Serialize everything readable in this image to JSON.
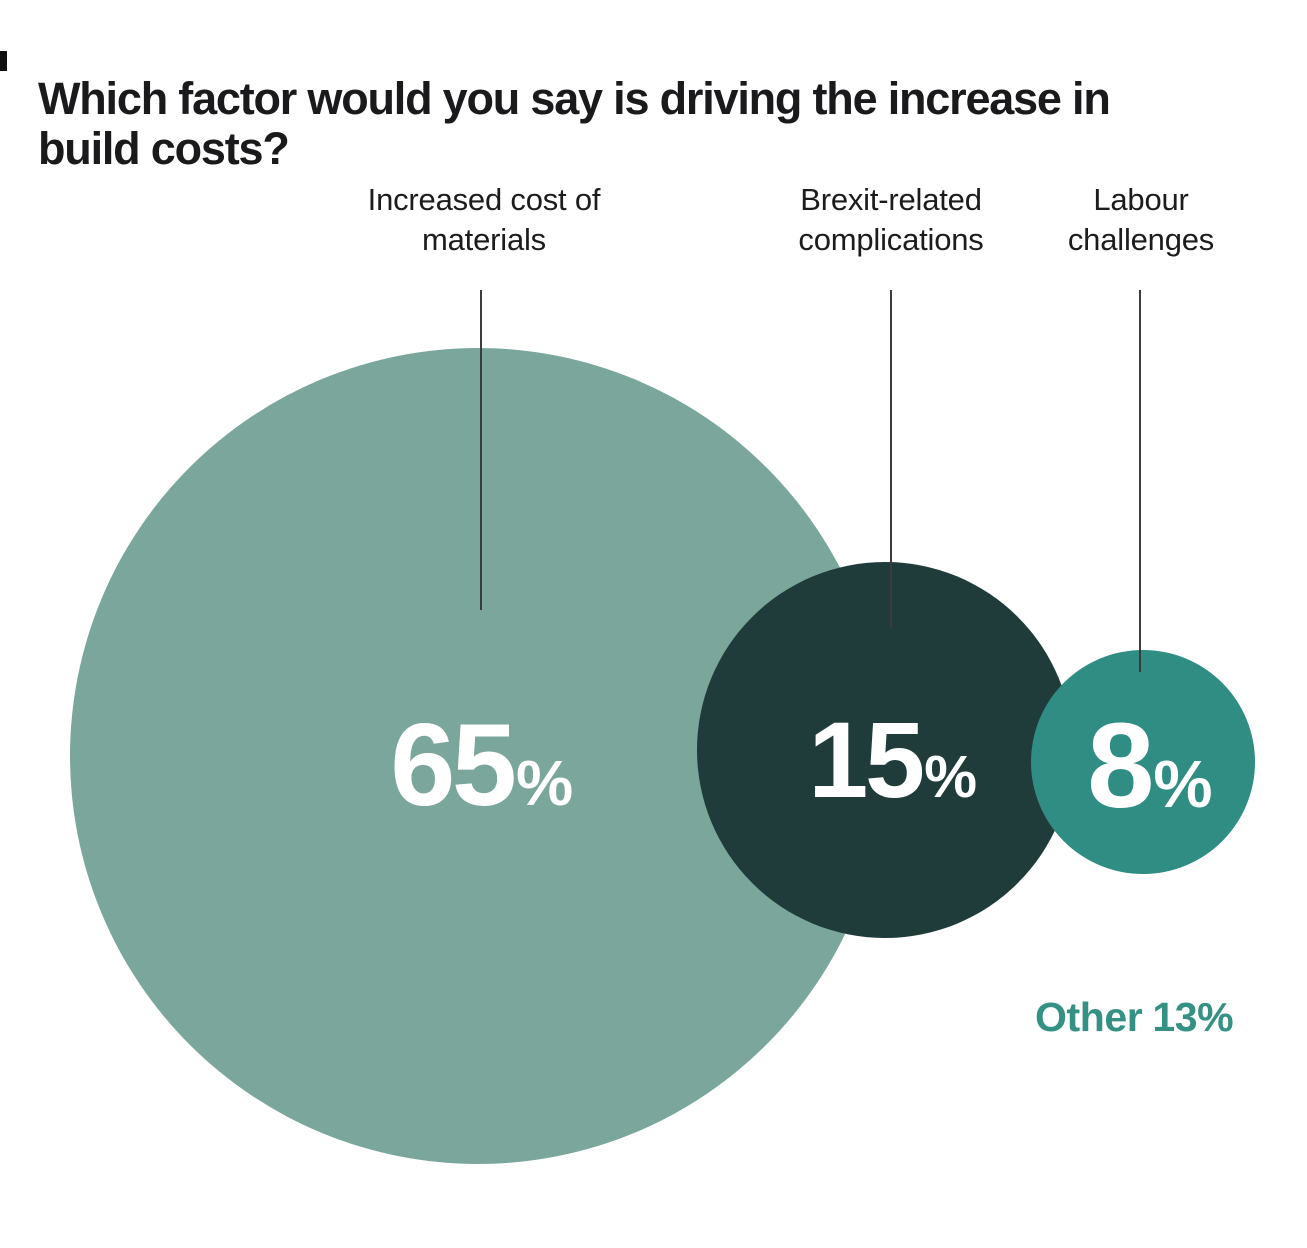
{
  "title": "Which factor would you say is driving the increase in build costs?",
  "corner_mark_color": "#101010",
  "bubbles": [
    {
      "name": "increased-cost-of-materials",
      "label_line1": "Increased cost of",
      "label_line2": "materials",
      "value": "65",
      "percent_sign": "%",
      "fill": "#7AA69B",
      "text_color": "#FFFFFF"
    },
    {
      "name": "brexit-related-complications",
      "label_line1": "Brexit-related",
      "label_line2": "complications",
      "value": "15",
      "percent_sign": "%",
      "fill": "#1F3C3A",
      "text_color": "#FFFFFF"
    },
    {
      "name": "labour-challenges",
      "label_line1": "Labour",
      "label_line2": "challenges",
      "value": "8",
      "percent_sign": "%",
      "fill": "#2F8D83",
      "text_color": "#FFFFFF"
    }
  ],
  "other": {
    "label": "Other",
    "value": "13%",
    "color": "#349183"
  },
  "chart_data": {
    "type": "bubble",
    "title": "Which factor would you say is driving the increase in build costs?",
    "unit": "%",
    "categories": [
      "Increased cost of materials",
      "Brexit-related complications",
      "Labour challenges",
      "Other"
    ],
    "values": [
      65,
      15,
      8,
      13
    ],
    "colors": [
      "#7AA69B",
      "#1F3C3A",
      "#2F8D83",
      "#349183"
    ],
    "legend_position": "labels-above-with-leader-lines",
    "notes": "Three circles sized by value; 'Other 13%' shown as text only, no circle"
  }
}
